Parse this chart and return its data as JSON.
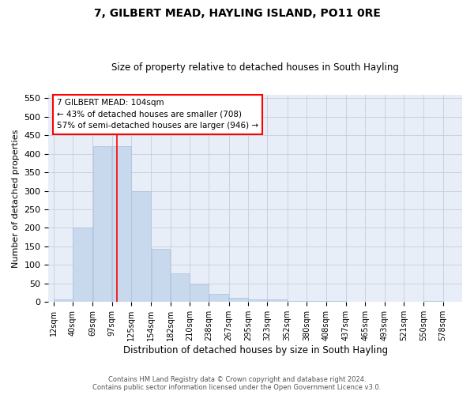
{
  "title": "7, GILBERT MEAD, HAYLING ISLAND, PO11 0RE",
  "subtitle": "Size of property relative to detached houses in South Hayling",
  "xlabel": "Distribution of detached houses by size in South Hayling",
  "ylabel": "Number of detached properties",
  "bar_color": "#c8d9ee",
  "bar_edgecolor": "#a8c0de",
  "bar_left_edges": [
    12,
    40,
    69,
    97,
    125,
    154,
    182,
    210,
    238,
    267,
    295,
    323,
    352,
    380,
    408,
    437,
    465,
    493,
    521,
    550
  ],
  "bar_widths": [
    28,
    29,
    28,
    28,
    29,
    28,
    28,
    28,
    29,
    28,
    28,
    29,
    28,
    28,
    29,
    28,
    28,
    28,
    29,
    28
  ],
  "bar_heights": [
    8,
    200,
    420,
    420,
    300,
    143,
    78,
    48,
    23,
    12,
    8,
    7,
    3,
    2,
    2,
    1,
    0,
    0,
    0,
    3
  ],
  "tick_labels": [
    "12sqm",
    "40sqm",
    "69sqm",
    "97sqm",
    "125sqm",
    "154sqm",
    "182sqm",
    "210sqm",
    "238sqm",
    "267sqm",
    "295sqm",
    "323sqm",
    "352sqm",
    "380sqm",
    "408sqm",
    "437sqm",
    "465sqm",
    "493sqm",
    "521sqm",
    "550sqm",
    "578sqm"
  ],
  "tick_positions": [
    12,
    40,
    69,
    97,
    125,
    154,
    182,
    210,
    238,
    267,
    295,
    323,
    352,
    380,
    408,
    437,
    465,
    493,
    521,
    550,
    578
  ],
  "ylim": [
    0,
    560
  ],
  "xlim": [
    5,
    606
  ],
  "yticks": [
    0,
    50,
    100,
    150,
    200,
    250,
    300,
    350,
    400,
    450,
    500,
    550
  ],
  "red_line_x": 104,
  "annotation_text": "7 GILBERT MEAD: 104sqm\n← 43% of detached houses are smaller (708)\n57% of semi-detached houses are larger (946) →",
  "footer_line1": "Contains HM Land Registry data © Crown copyright and database right 2024.",
  "footer_line2": "Contains public sector information licensed under the Open Government Licence v3.0.",
  "grid_color": "#c8ccd8",
  "background_color": "#e8eef8"
}
